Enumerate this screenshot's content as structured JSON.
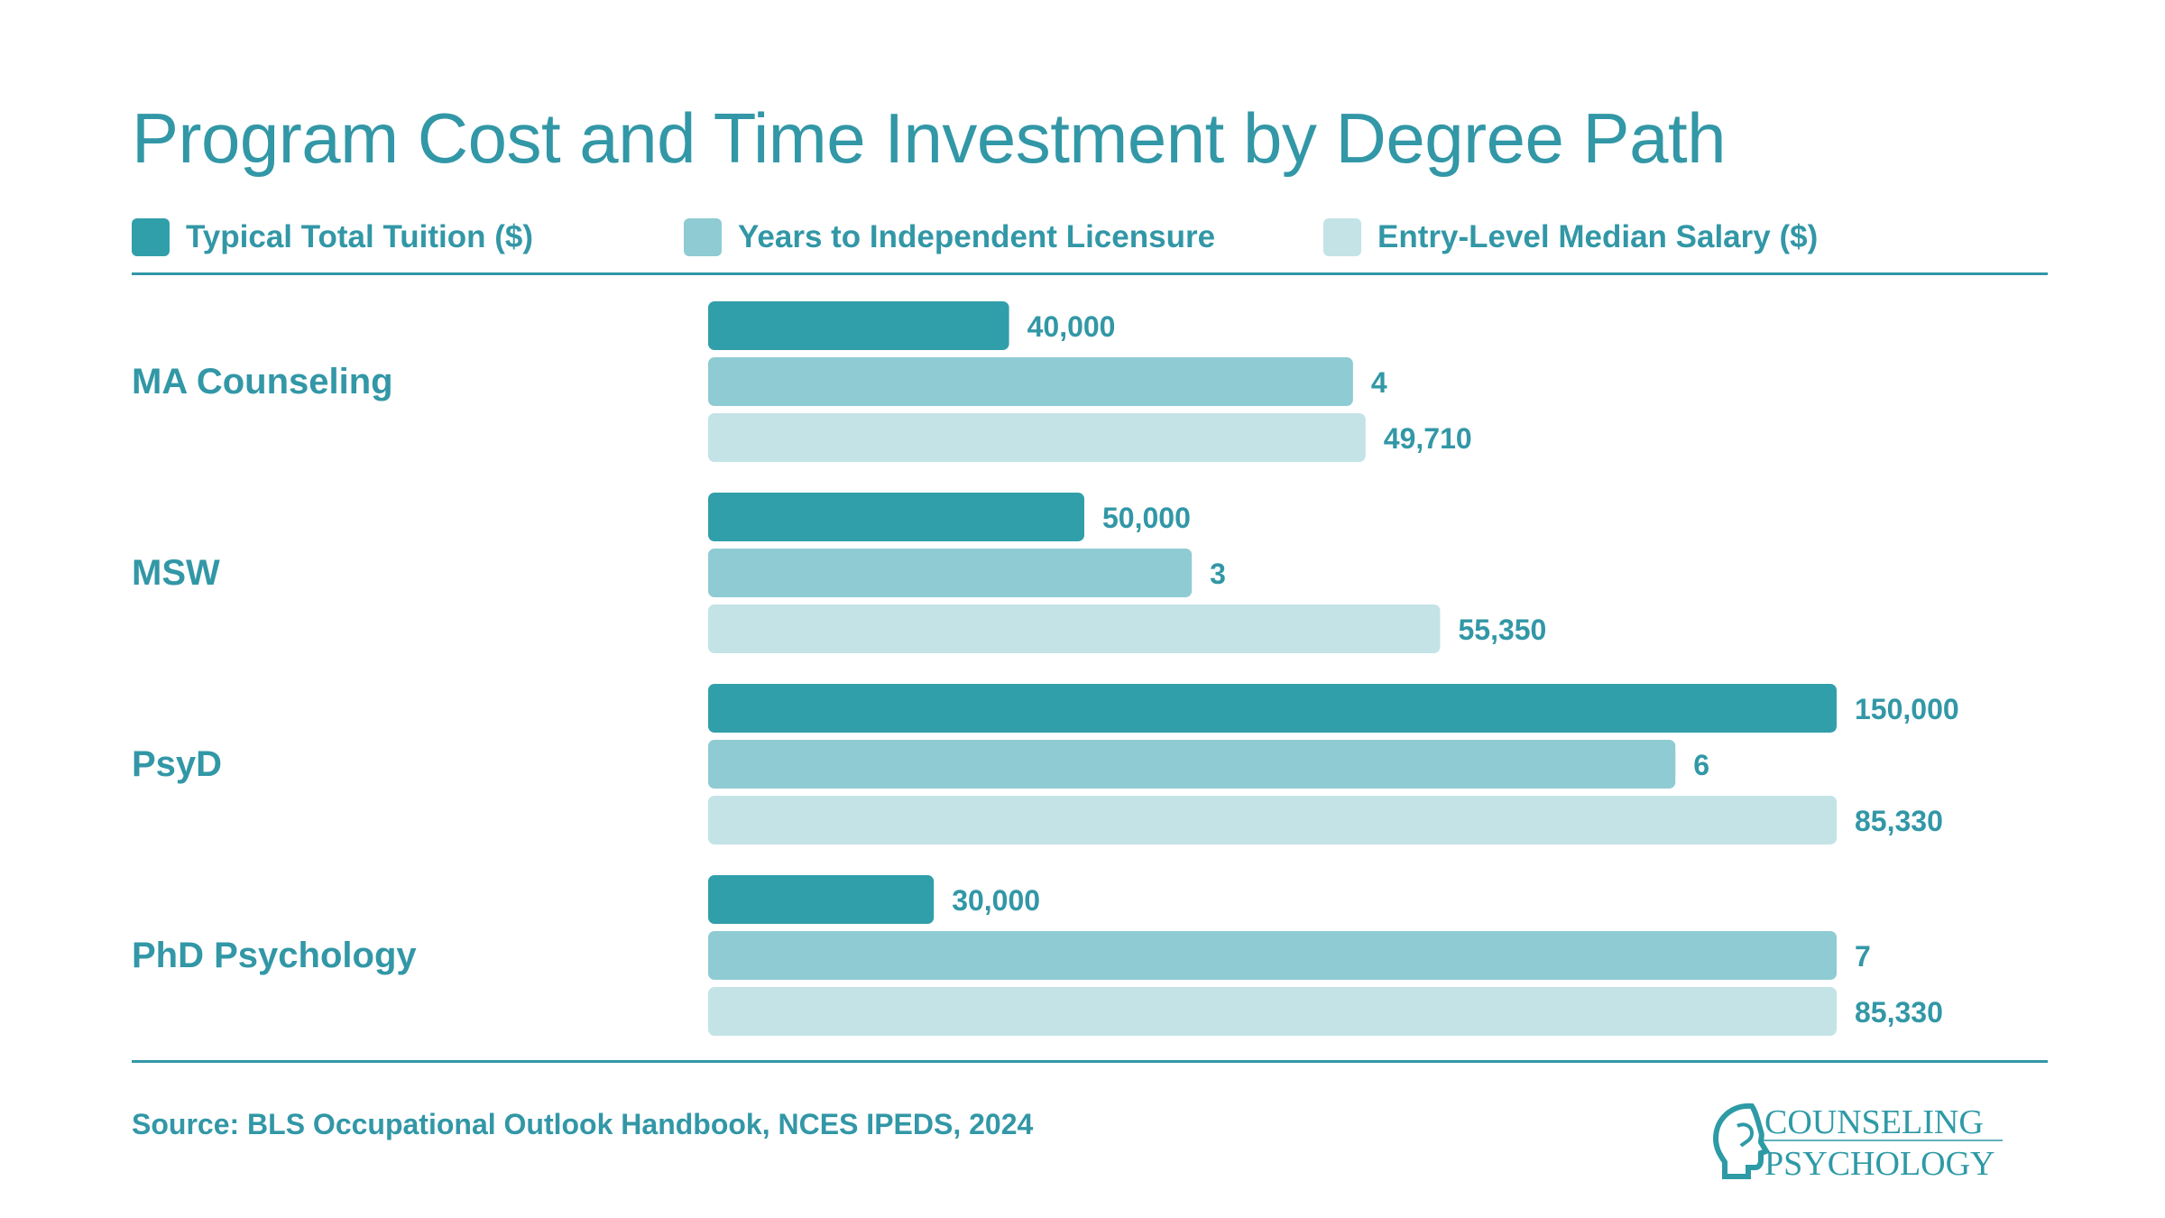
{
  "title": "Program Cost and Time Investment by Degree Path",
  "legend": [
    {
      "label": "Typical Total Tuition ($)",
      "color": "#319faa"
    },
    {
      "label": "Years to Independent Licensure",
      "color": "#8fcbd3"
    },
    {
      "label": "Entry-Level Median Salary ($)",
      "color": "#c3e3e7"
    }
  ],
  "chart_data": {
    "type": "bar",
    "orientation": "horizontal",
    "categories": [
      "MA Counseling",
      "MSW",
      "PsyD",
      "PhD Psychology"
    ],
    "series": [
      {
        "name": "Typical Total Tuition ($)",
        "color": "#319faa",
        "values": [
          40000,
          50000,
          150000,
          30000
        ],
        "labels": [
          "40,000",
          "50,000",
          "150,000",
          "30,000"
        ]
      },
      {
        "name": "Years to Independent Licensure",
        "color": "#8fcbd3",
        "values": [
          4,
          3,
          6,
          7
        ],
        "labels": [
          "4",
          "3",
          "6",
          "7"
        ]
      },
      {
        "name": "Entry-Level Median Salary ($)",
        "color": "#c3e3e7",
        "values": [
          49710,
          55350,
          85330,
          85330
        ],
        "labels": [
          "49,710",
          "55,350",
          "85,330",
          "85,330"
        ]
      }
    ],
    "grid": false,
    "legend_position": "top"
  },
  "footer": {
    "source": "Source: BLS Occupational Outlook Handbook, NCES IPEDS, 2024"
  },
  "logo": {
    "line1": "COUNSELING",
    "line2": "PSYCHOLOGY",
    "icon": "head-profile-icon"
  }
}
